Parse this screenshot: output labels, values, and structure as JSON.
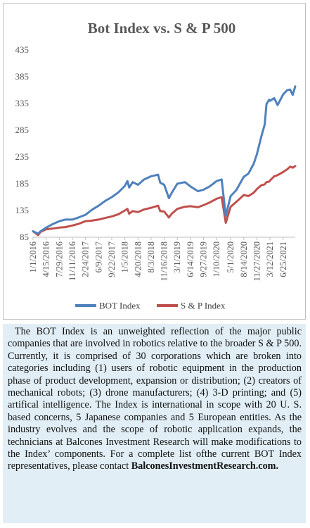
{
  "chart_data": {
    "type": "line",
    "title": "Bot Index vs. S & P 500",
    "xlabel": "",
    "ylabel": "",
    "ylim": [
      85,
      435
    ],
    "yticks": [
      85,
      135,
      185,
      235,
      285,
      335,
      385,
      435
    ],
    "xlim": [
      "2016-01-01",
      "2021-09-30"
    ],
    "xticks": [
      "1/1/2016",
      "4/15/2016",
      "7/29/2016",
      "11/11/2016",
      "2/24/2017",
      "6/9/2017",
      "9/22/2017",
      "1/5/2018",
      "4/20/2018",
      "8/3/2018",
      "11/16/2018",
      "3/1/2019",
      "6/14/2019",
      "9/27/2019",
      "1/10/2020",
      "5/1/2020",
      "8/14/2020",
      "11/27/2020",
      "3/12/2021",
      "6/25/2021"
    ],
    "grid": false,
    "legend": "bottom",
    "series": [
      {
        "name": "BOT Index",
        "color": "#4f81bd",
        "x": [
          "2016-01-01",
          "2016-02-11",
          "2016-03-01",
          "2016-04-15",
          "2016-06-01",
          "2016-07-29",
          "2016-09-15",
          "2016-11-11",
          "2016-12-30",
          "2017-02-24",
          "2017-04-15",
          "2017-06-09",
          "2017-08-01",
          "2017-09-22",
          "2017-11-15",
          "2018-01-05",
          "2018-01-26",
          "2018-02-09",
          "2018-03-09",
          "2018-04-20",
          "2018-06-08",
          "2018-08-03",
          "2018-09-28",
          "2018-10-15",
          "2018-11-16",
          "2018-12-24",
          "2019-01-15",
          "2019-03-01",
          "2019-05-01",
          "2019-06-14",
          "2019-08-14",
          "2019-09-27",
          "2019-11-15",
          "2020-01-10",
          "2020-02-19",
          "2020-03-23",
          "2020-05-01",
          "2020-06-15",
          "2020-08-14",
          "2020-09-20",
          "2020-11-01",
          "2020-11-27",
          "2020-12-31",
          "2021-01-29",
          "2021-02-12",
          "2021-03-05",
          "2021-03-12",
          "2021-04-15",
          "2021-05-12",
          "2021-06-25",
          "2021-07-28",
          "2021-08-20",
          "2021-09-10",
          "2021-09-30"
        ],
        "values": [
          96,
          92,
          96,
          103,
          109,
          115,
          118,
          118,
          122,
          127,
          136,
          144,
          153,
          160,
          169,
          181,
          190,
          178,
          188,
          183,
          193,
          199,
          202,
          187,
          183,
          158,
          168,
          185,
          188,
          180,
          171,
          174,
          180,
          190,
          193,
          125,
          162,
          173,
          198,
          204,
          222,
          240,
          272,
          296,
          334,
          342,
          340,
          345,
          332,
          352,
          360,
          361,
          351,
          367
        ]
      },
      {
        "name": "S & P Index",
        "color": "#c0504d",
        "x": [
          "2016-01-01",
          "2016-02-11",
          "2016-03-01",
          "2016-04-15",
          "2016-06-01",
          "2016-07-29",
          "2016-09-15",
          "2016-11-11",
          "2016-12-30",
          "2017-02-24",
          "2017-04-15",
          "2017-06-09",
          "2017-08-01",
          "2017-09-22",
          "2017-11-15",
          "2018-01-05",
          "2018-01-26",
          "2018-02-09",
          "2018-03-09",
          "2018-04-20",
          "2018-06-08",
          "2018-08-03",
          "2018-09-28",
          "2018-10-15",
          "2018-11-16",
          "2018-12-24",
          "2019-01-15",
          "2019-03-01",
          "2019-05-01",
          "2019-06-14",
          "2019-08-14",
          "2019-09-27",
          "2019-11-15",
          "2020-01-10",
          "2020-02-19",
          "2020-03-23",
          "2020-05-01",
          "2020-06-15",
          "2020-08-14",
          "2020-09-20",
          "2020-11-01",
          "2020-11-27",
          "2020-12-31",
          "2021-01-29",
          "2021-02-12",
          "2021-03-05",
          "2021-03-12",
          "2021-04-15",
          "2021-05-12",
          "2021-06-25",
          "2021-07-28",
          "2021-08-20",
          "2021-09-10",
          "2021-09-30"
        ],
        "values": [
          96,
          89,
          95,
          100,
          101,
          103,
          104,
          107,
          110,
          115,
          116,
          118,
          121,
          124,
          128,
          135,
          138,
          129,
          134,
          132,
          137,
          140,
          144,
          134,
          133,
          122,
          129,
          138,
          142,
          143,
          141,
          145,
          150,
          157,
          160,
          112,
          142,
          151,
          164,
          162,
          168,
          175,
          182,
          184,
          188,
          189,
          191,
          199,
          201,
          207,
          212,
          217,
          215,
          218
        ]
      }
    ]
  },
  "description": {
    "body": "The BOT Index is an unweighted reflection of the major public companies that are involved in robotics relative to the broader S & P 500. Currently, it is comprised of 30 corporations which are broken into categories including (1) users of robotic equipment in the production phase of product development, expansion or distribution; (2) creators of mechanical robots; (3) drone manufacturers; (4) 3-D printing; and (5) artifical intelligence. The Index is international in scope with 20 U. S. based concerns, 5 Japanese companies and 5 European entities. As the industry evolves and the scope of robotic application expands, the technicians at Balcones Investment Research will make modifications to the Index’ components. For a  complete list ofthe current  BOT Index  representatives,  please  contact",
    "contact": "BalconesInvestmentResearch.com."
  }
}
